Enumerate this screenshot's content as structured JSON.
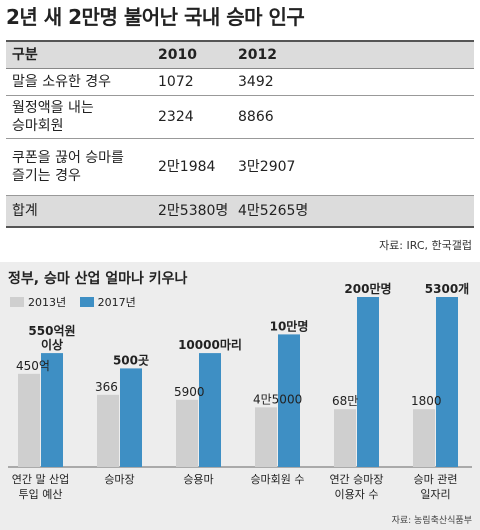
{
  "table": {
    "title": "2년 새 2만명 불어난 국내 승마 인구",
    "headers": [
      "구분",
      "2010",
      "2012"
    ],
    "rows": [
      {
        "label": [
          "말을 소유한 경우"
        ],
        "v2010": "1072",
        "v2012": "3492"
      },
      {
        "label": [
          "월정액을 내는",
          "승마회원"
        ],
        "v2010": "2324",
        "v2012": "8866"
      },
      {
        "label": [
          "쿠폰을 끊어 승마를",
          "즐기는 경우"
        ],
        "v2010": "2만1984",
        "v2012": "3만2907"
      }
    ],
    "total": {
      "label": "합계",
      "v2010": "2만5380명",
      "v2012": "4만5265명"
    },
    "source": "자료: IRC, 한국갤럽"
  },
  "chart_data": {
    "type": "bar",
    "title": "정부, 승마 산업 얼마나 키우나",
    "legend": [
      "2013년",
      "2017년"
    ],
    "legend_position": "top-left",
    "colors": {
      "2013": "#cfcfcf",
      "2017": "#3e8fc4"
    },
    "categories": [
      {
        "lines": [
          "연간 말 산업",
          "투입 예산"
        ],
        "v2013": "450억",
        "v2017": "550억원 이상",
        "v2017_lines": [
          "550억원",
          "이상"
        ],
        "ratio": 0.818
      },
      {
        "lines": [
          "승마장"
        ],
        "v2013": "366",
        "v2017": "500곳",
        "v2017_lines": [
          "500곳"
        ],
        "ratio": 0.732
      },
      {
        "lines": [
          "승용마"
        ],
        "v2013": "5900",
        "v2017": "10000마리",
        "v2017_lines": [
          "10000마리"
        ],
        "ratio": 0.59
      },
      {
        "lines": [
          "승마회원 수"
        ],
        "v2013": "4만5000",
        "v2017": "10만명",
        "v2017_lines": [
          "10만명"
        ],
        "ratio": 0.45
      },
      {
        "lines": [
          "연간 승마장",
          "이용자 수"
        ],
        "v2013": "68만",
        "v2017": "200만명",
        "v2017_lines": [
          "200만명"
        ],
        "ratio": 0.34
      },
      {
        "lines": [
          "승마 관련",
          "일자리"
        ],
        "v2013": "1800",
        "v2017": "5300개",
        "v2017_lines": [
          "5300개"
        ],
        "ratio": 0.34
      }
    ],
    "source": "자료: 농림축산식품부"
  }
}
